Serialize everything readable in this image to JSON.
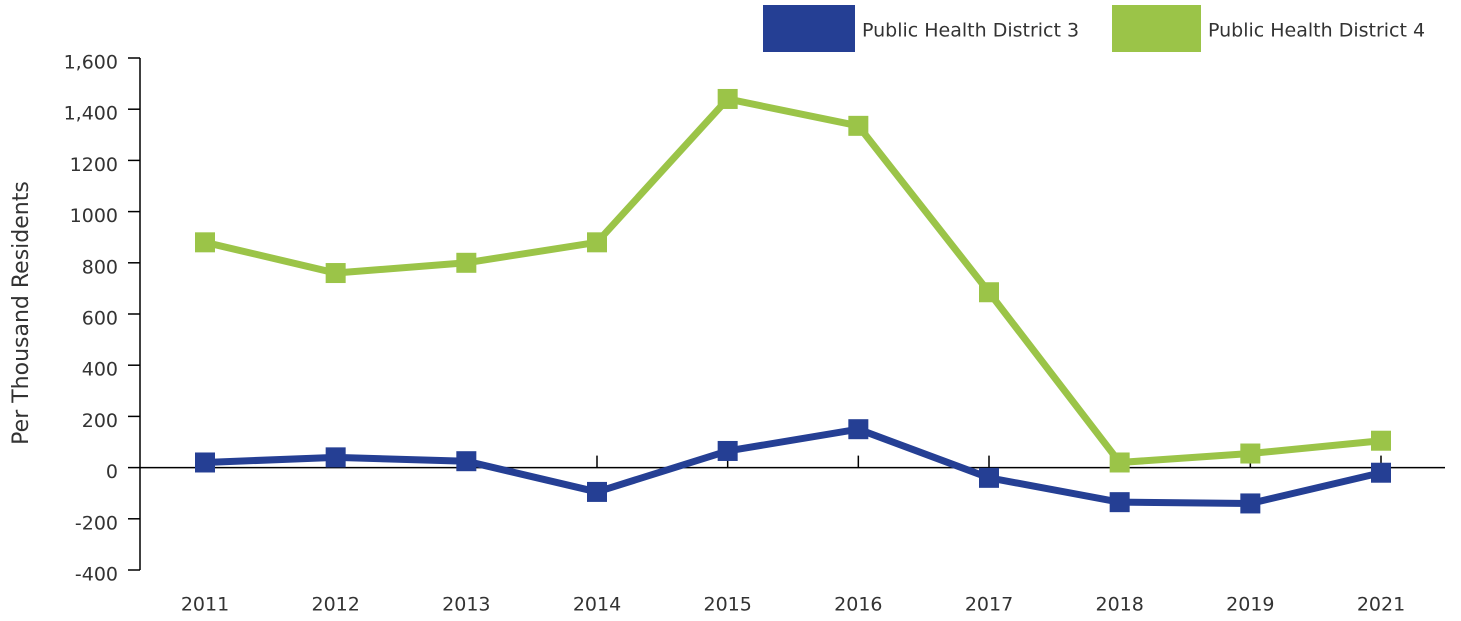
{
  "chart_data": {
    "type": "line",
    "y_label": "Per Thousand Residents",
    "categories": [
      "2011",
      "2012",
      "2013",
      "2014",
      "2015",
      "2016",
      "2017",
      "2018",
      "2019",
      "2021"
    ],
    "series": [
      {
        "name": "Public Health District 3",
        "color": "#253f94",
        "values": [
          20,
          40,
          25,
          -95,
          65,
          150,
          -40,
          -135,
          -140,
          -20
        ]
      },
      {
        "name": "Public Health District 4",
        "color": "#9bc448",
        "values": [
          880,
          760,
          800,
          880,
          1440,
          1335,
          685,
          20,
          55,
          105
        ]
      }
    ],
    "ylim": [
      -400,
      1600
    ],
    "yticks": [
      -400,
      -200,
      0,
      200,
      400,
      600,
      800,
      1000,
      1200,
      {
        "value": 1400,
        "label": "1,400"
      },
      {
        "value": 1600,
        "label": "1,600"
      }
    ],
    "legend": "top-right"
  }
}
